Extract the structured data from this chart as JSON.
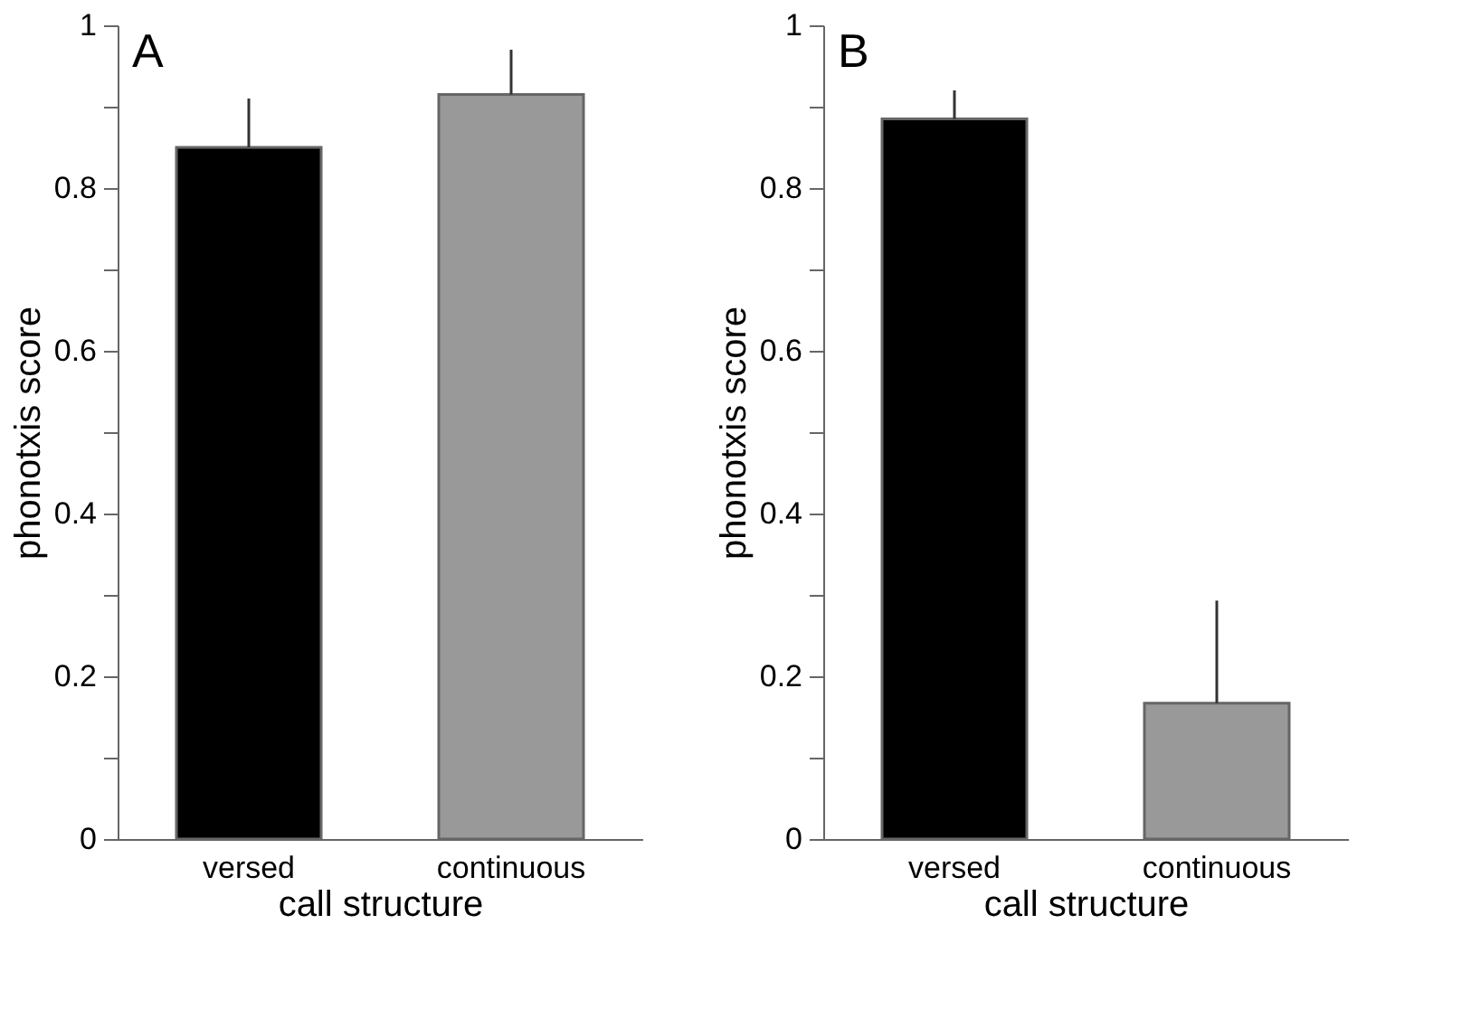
{
  "chart_data": [
    {
      "type": "bar",
      "title": "A",
      "xlabel": "call structure",
      "ylabel": "phonotxis score",
      "categories": [
        "versed",
        "continuous"
      ],
      "values": [
        0.85,
        0.915
      ],
      "colors": [
        "#000000",
        "#999999"
      ],
      "errors": [
        [
          0.85,
          0.91
        ],
        [
          0.915,
          0.97
        ]
      ],
      "ylim": [
        0,
        1
      ],
      "yticks": [
        0,
        {
          "value": 0.1,
          "label": null
        },
        0.2,
        {
          "value": 0.3,
          "label": null
        },
        0.4,
        {
          "value": 0.5,
          "label": null
        },
        0.6,
        {
          "value": 0.7,
          "label": null
        },
        0.8,
        {
          "value": 0.9,
          "label": null
        },
        1
      ],
      "grid": false
    },
    {
      "type": "bar",
      "title": "B",
      "xlabel": "call structure",
      "ylabel": "phonotxis score",
      "categories": [
        "versed",
        "continuous"
      ],
      "values": [
        0.885,
        0.167
      ],
      "colors": [
        "#000000",
        "#999999"
      ],
      "errors": [
        [
          0.885,
          0.92
        ],
        [
          0.167,
          0.293
        ]
      ],
      "ylim": [
        0,
        1
      ],
      "yticks": [
        0,
        {
          "value": 0.1,
          "label": null
        },
        0.2,
        {
          "value": 0.3,
          "label": null
        },
        0.4,
        {
          "value": 0.5,
          "label": null
        },
        0.6,
        {
          "value": 0.7,
          "label": null
        },
        0.8,
        {
          "value": 0.9,
          "label": null
        },
        1
      ],
      "grid": false
    }
  ]
}
